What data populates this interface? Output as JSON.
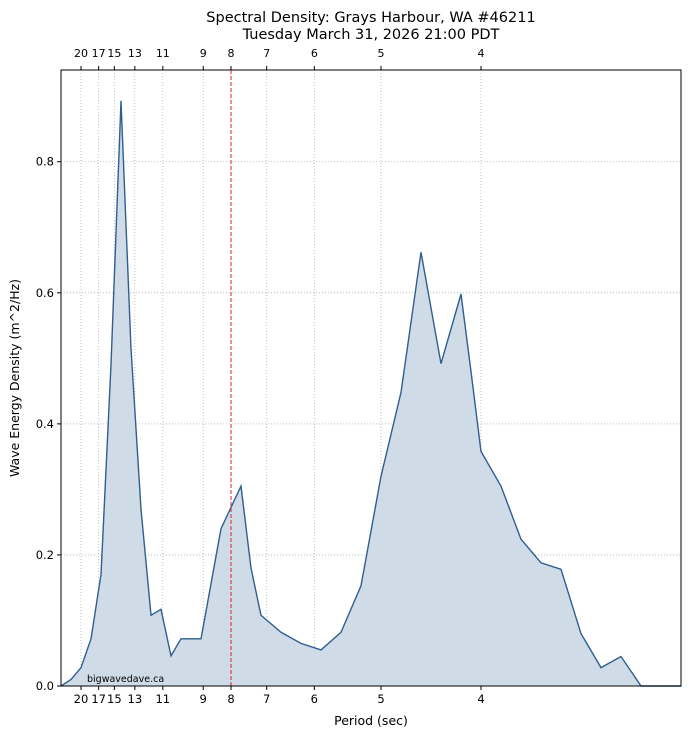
{
  "chart_data": {
    "type": "area",
    "title": "Spectral Density: Grays Harbour, WA #46211",
    "subtitle": "Tuesday March 31, 2026 21:00 PDT",
    "xlabel": "Period (sec)",
    "ylabel": "Wave Energy Density (m^2/Hz)",
    "x_axis_scale": "frequency (reciprocal of period)",
    "xlim_hz": [
      0.04,
      0.35
    ],
    "ylim": [
      0,
      0.94
    ],
    "y_ticks": [
      0.0,
      0.2,
      0.4,
      0.6,
      0.8
    ],
    "y_tick_labels": [
      "0.0",
      "0.2",
      "0.4",
      "0.6",
      "0.8"
    ],
    "x_ticks": [
      {
        "period": 20,
        "label": "20"
      },
      {
        "period": 17,
        "label": "17"
      },
      {
        "period": 15,
        "label": "15"
      },
      {
        "period": 13,
        "label": "13"
      },
      {
        "period": 11,
        "label": "11"
      },
      {
        "period": 9,
        "label": "9"
      },
      {
        "period": 8,
        "label": "8"
      },
      {
        "period": 7,
        "label": "7"
      },
      {
        "period": 6,
        "label": "6"
      },
      {
        "period": 5,
        "label": "5"
      },
      {
        "period": 4,
        "label": "4"
      }
    ],
    "peak_marker_period": 8,
    "grid": true,
    "series": [
      {
        "x_hz": [
          0.04,
          0.045,
          0.05,
          0.055,
          0.06,
          0.065,
          0.07,
          0.075,
          0.08,
          0.085,
          0.09,
          0.095,
          0.1,
          0.11,
          0.12,
          0.13,
          0.135,
          0.14,
          0.15,
          0.16,
          0.17,
          0.18,
          0.19,
          0.2,
          0.21,
          0.22,
          0.23,
          0.24,
          0.245,
          0.25,
          0.26,
          0.27,
          0.28,
          0.29,
          0.3,
          0.31,
          0.32,
          0.33,
          0.34,
          0.35
        ],
        "values": [
          0.0,
          0.01,
          0.028,
          0.072,
          0.17,
          0.49,
          0.893,
          0.515,
          0.27,
          0.108,
          0.117,
          0.046,
          0.072,
          0.072,
          0.24,
          0.305,
          0.18,
          0.108,
          0.082,
          0.065,
          0.055,
          0.082,
          0.153,
          0.32,
          0.448,
          0.662,
          0.492,
          0.598,
          0.48,
          0.358,
          0.305,
          0.224,
          0.188,
          0.178,
          0.08,
          0.028,
          0.045,
          0.0,
          0.0,
          0.0
        ]
      }
    ],
    "line_color": "#2f5f8f",
    "fill_color": "#cfdbe7",
    "peak_marker_color": "#d62728"
  },
  "watermark": "bigwavedave.ca"
}
